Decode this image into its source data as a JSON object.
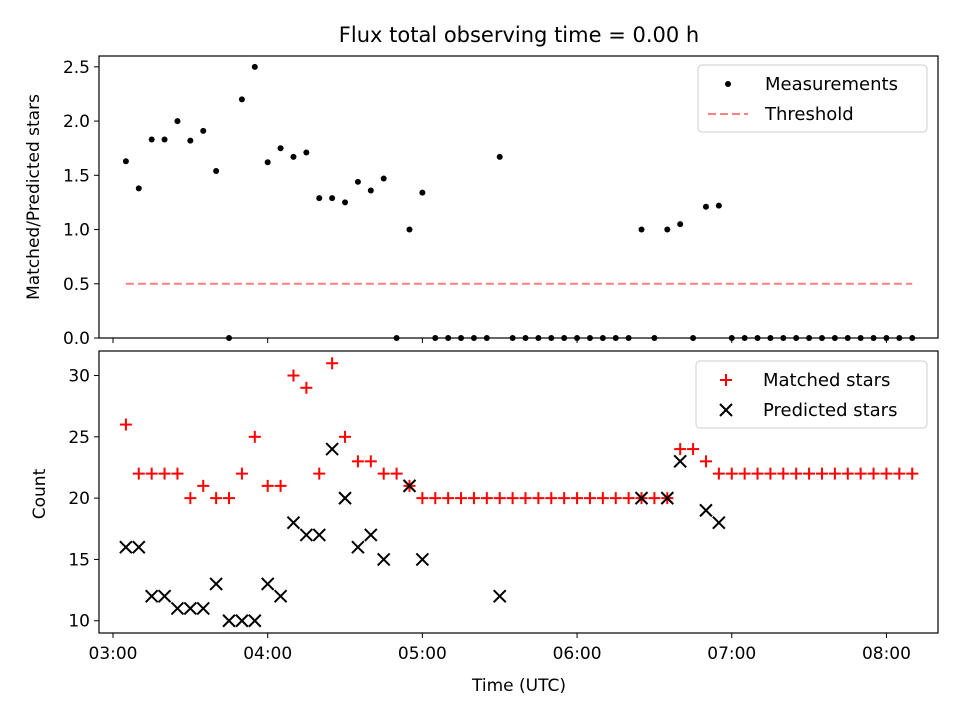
{
  "chart_data": [
    {
      "type": "scatter",
      "title": "Flux total observing time = 0.00 h",
      "ylabel": "Matched/Predicted stars",
      "xlabel": "",
      "xlim": [
        "03:00",
        "08:20"
      ],
      "ylim": [
        0,
        2.6
      ],
      "yticks": [
        0.0,
        0.5,
        1.0,
        1.5,
        2.0,
        2.5
      ],
      "ytick_labels": [
        "0.0",
        "0.5",
        "1.0",
        "1.5",
        "2.0",
        "2.5"
      ],
      "grid": false,
      "legend": "top-right",
      "series": [
        {
          "name": "Measurements",
          "kind": "points",
          "color": "#000000",
          "x": [
            "03:05",
            "03:10",
            "03:15",
            "03:20",
            "03:25",
            "03:30",
            "03:35",
            "03:40",
            "03:45",
            "03:50",
            "03:55",
            "04:00",
            "04:05",
            "04:10",
            "04:15",
            "04:20",
            "04:25",
            "04:30",
            "04:35",
            "04:40",
            "04:45",
            "04:50",
            "04:55",
            "05:00",
            "05:05",
            "05:10",
            "05:15",
            "05:20",
            "05:25",
            "05:30",
            "05:35",
            "05:40",
            "05:45",
            "05:50",
            "05:55",
            "06:00",
            "06:05",
            "06:10",
            "06:15",
            "06:20",
            "06:25",
            "06:30",
            "06:35",
            "06:40",
            "06:45",
            "06:50",
            "06:55",
            "07:00",
            "07:05",
            "07:10",
            "07:15",
            "07:20",
            "07:25",
            "07:30",
            "07:35",
            "07:40",
            "07:45",
            "07:50",
            "07:55",
            "08:00",
            "08:05",
            "08:10"
          ],
          "y": [
            1.63,
            1.38,
            1.83,
            1.83,
            2.0,
            1.82,
            1.91,
            1.54,
            0.0,
            2.2,
            2.5,
            1.62,
            1.75,
            1.67,
            1.71,
            1.29,
            1.29,
            1.25,
            1.44,
            1.36,
            1.47,
            0.0,
            1.0,
            1.34,
            0.0,
            0.0,
            0.0,
            0.0,
            0.0,
            1.67,
            0.0,
            0.0,
            0.0,
            0.0,
            0.0,
            0.0,
            0.0,
            0.0,
            0.0,
            0.0,
            1.0,
            0.0,
            1.0,
            1.05,
            0.0,
            1.21,
            1.22,
            0.0,
            0.0,
            0.0,
            0.0,
            0.0,
            0.0,
            0.0,
            0.0,
            0.0,
            0.0,
            0.0,
            0.0,
            0.0,
            0.0,
            0.0
          ]
        },
        {
          "name": "Threshold",
          "kind": "dashed-line",
          "color": "#ff7f7f",
          "x": [
            "03:05",
            "08:10"
          ],
          "y": [
            0.5,
            0.5
          ]
        }
      ]
    },
    {
      "type": "scatter",
      "title": "",
      "ylabel": "Count",
      "xlabel": "Time (UTC)",
      "xlim": [
        "03:00",
        "08:20"
      ],
      "xticks": [
        "03:00",
        "04:00",
        "05:00",
        "06:00",
        "07:00",
        "08:00"
      ],
      "ylim": [
        9,
        32
      ],
      "yticks": [
        10,
        15,
        20,
        25,
        30
      ],
      "ytick_labels": [
        "10",
        "15",
        "20",
        "25",
        "30"
      ],
      "grid": false,
      "legend": "top-right",
      "series": [
        {
          "name": "Matched stars",
          "kind": "plus",
          "color": "#ff0000",
          "x": [
            "03:05",
            "03:10",
            "03:15",
            "03:20",
            "03:25",
            "03:30",
            "03:35",
            "03:40",
            "03:45",
            "03:50",
            "03:55",
            "04:00",
            "04:05",
            "04:10",
            "04:15",
            "04:20",
            "04:25",
            "04:30",
            "04:35",
            "04:40",
            "04:45",
            "04:50",
            "04:55",
            "05:00",
            "05:05",
            "05:10",
            "05:15",
            "05:20",
            "05:25",
            "05:30",
            "05:35",
            "05:40",
            "05:45",
            "05:50",
            "05:55",
            "06:00",
            "06:05",
            "06:10",
            "06:15",
            "06:20",
            "06:25",
            "06:30",
            "06:35",
            "06:40",
            "06:45",
            "06:50",
            "06:55",
            "07:00",
            "07:05",
            "07:10",
            "07:15",
            "07:20",
            "07:25",
            "07:30",
            "07:35",
            "07:40",
            "07:45",
            "07:50",
            "07:55",
            "08:00",
            "08:05",
            "08:10"
          ],
          "y": [
            26,
            22,
            22,
            22,
            22,
            20,
            21,
            20,
            20,
            22,
            25,
            21,
            21,
            30,
            29,
            22,
            31,
            25,
            23,
            23,
            22,
            22,
            21,
            20,
            20,
            20,
            20,
            20,
            20,
            20,
            20,
            20,
            20,
            20,
            20,
            20,
            20,
            20,
            20,
            20,
            20,
            20,
            20,
            24,
            24,
            23,
            22,
            22,
            22,
            22,
            22,
            22,
            22,
            22,
            22,
            22,
            22,
            22,
            22,
            22,
            22,
            22
          ]
        },
        {
          "name": "Predicted stars",
          "kind": "x",
          "color": "#000000",
          "x": [
            "03:05",
            "03:10",
            "03:15",
            "03:20",
            "03:25",
            "03:30",
            "03:35",
            "03:40",
            "03:45",
            "03:50",
            "03:55",
            "04:00",
            "04:05",
            "04:10",
            "04:15",
            "04:20",
            "04:25",
            "04:30",
            "04:35",
            "04:40",
            "04:45",
            "04:55",
            "05:00",
            "05:30",
            "06:25",
            "06:35",
            "06:40",
            "06:50",
            "06:55"
          ],
          "y": [
            16,
            16,
            12,
            12,
            11,
            11,
            11,
            13,
            10,
            10,
            10,
            13,
            12,
            18,
            17,
            17,
            24,
            20,
            16,
            17,
            15,
            21,
            15,
            12,
            20,
            20,
            23,
            19,
            18
          ]
        }
      ]
    }
  ]
}
